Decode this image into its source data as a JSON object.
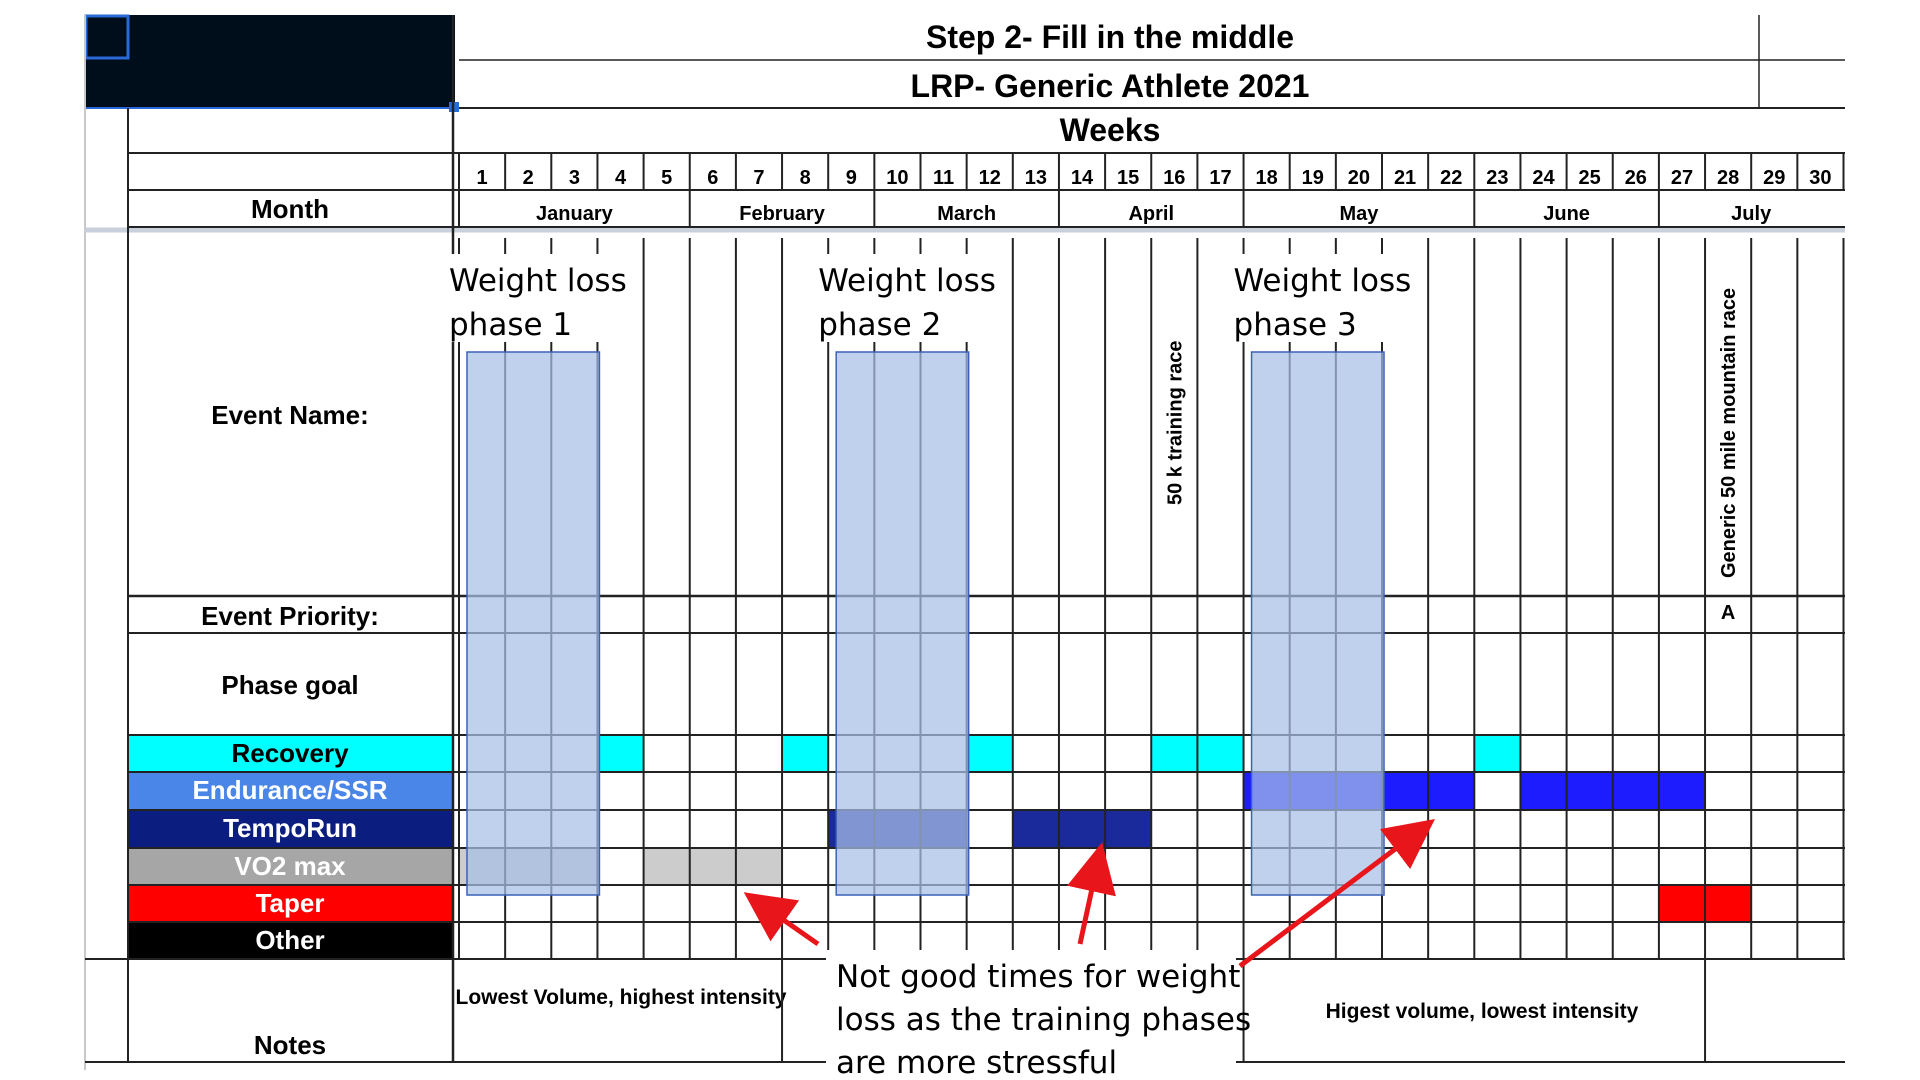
{
  "header": {
    "step_title": "Step 2- Fill in the middle",
    "plan_title": "LRP- Generic Athlete 2021",
    "weeks_label": "Weeks"
  },
  "weeks": [
    "1",
    "2",
    "3",
    "4",
    "5",
    "6",
    "7",
    "8",
    "9",
    "10",
    "11",
    "12",
    "13",
    "14",
    "15",
    "16",
    "17",
    "18",
    "19",
    "20",
    "21",
    "22",
    "23",
    "24",
    "25",
    "26",
    "27",
    "28",
    "29",
    "30"
  ],
  "months": [
    {
      "name": "January",
      "start_week": 1,
      "end_week": 5
    },
    {
      "name": "February",
      "start_week": 6,
      "end_week": 9
    },
    {
      "name": "March",
      "start_week": 10,
      "end_week": 13
    },
    {
      "name": "April",
      "start_week": 14,
      "end_week": 17
    },
    {
      "name": "May",
      "start_week": 18,
      "end_week": 22
    },
    {
      "name": "June",
      "start_week": 23,
      "end_week": 26
    },
    {
      "name": "July",
      "start_week": 27,
      "end_week": 30
    }
  ],
  "row_labels": {
    "month": "Month",
    "event_name": "Event Name:",
    "event_priority": "Event Priority:",
    "phase_goal": "Phase goal",
    "notes": "Notes"
  },
  "events": [
    {
      "week": 16,
      "name": "50 k training race"
    },
    {
      "week": 28,
      "name": "Generic 50 mile mountain race",
      "priority": "A"
    }
  ],
  "phases": [
    {
      "key": "recovery",
      "label": "Recovery",
      "label_bg": "#00ffff",
      "label_color": "#000000",
      "cell_color": "#00ffff",
      "weeks": [
        4,
        8,
        12,
        16,
        17,
        23
      ]
    },
    {
      "key": "endurance",
      "label": "Endurance/SSR",
      "label_bg": "#4a86e8",
      "label_color": "#ffffff",
      "cell_color": "#1c1cff",
      "weeks": [
        18,
        19,
        20,
        21,
        22,
        24,
        25,
        26,
        27
      ]
    },
    {
      "key": "tempo",
      "label": "TempoRun",
      "label_bg": "#0b1e80",
      "label_color": "#ffffff",
      "cell_color": "#1a2a9a",
      "weeks": [
        9,
        10,
        11,
        13,
        14,
        15
      ]
    },
    {
      "key": "vo2",
      "label": "VO2 max",
      "label_bg": "#a6a6a6",
      "label_color": "#ffffff",
      "cell_color": "#cccccc",
      "weeks": [
        1,
        2,
        3,
        5,
        6,
        7
      ]
    },
    {
      "key": "taper",
      "label": "Taper",
      "label_bg": "#ff0000",
      "label_color": "#ffffff",
      "cell_color": "#ff0000",
      "weeks": [
        27,
        28
      ]
    },
    {
      "key": "other",
      "label": "Other",
      "label_bg": "#000000",
      "label_color": "#ffffff",
      "cell_color": "#000000",
      "weeks": []
    }
  ],
  "notes": {
    "early": "Lowest Volume, highest intensity",
    "late": "Higest volume, lowest intensity"
  },
  "weight_loss_phases": [
    {
      "label_line1": "Weight loss",
      "label_line2": "phase 1",
      "start_week": 1,
      "end_week": 3
    },
    {
      "label_line1": "Weight loss",
      "label_line2": "phase 2",
      "start_week": 9,
      "end_week": 11
    },
    {
      "label_line1": "Weight loss",
      "label_line2": "phase 3",
      "start_week": 18,
      "end_week": 20
    }
  ],
  "annotation": {
    "line1": "Not good times for weight",
    "line2": "loss as the training phases",
    "line3": "are more stressful"
  },
  "colors": {
    "weight_loss_overlay": "#a8bfe6",
    "arrow": "#e8161b",
    "selected_cell": "#000d1a"
  }
}
